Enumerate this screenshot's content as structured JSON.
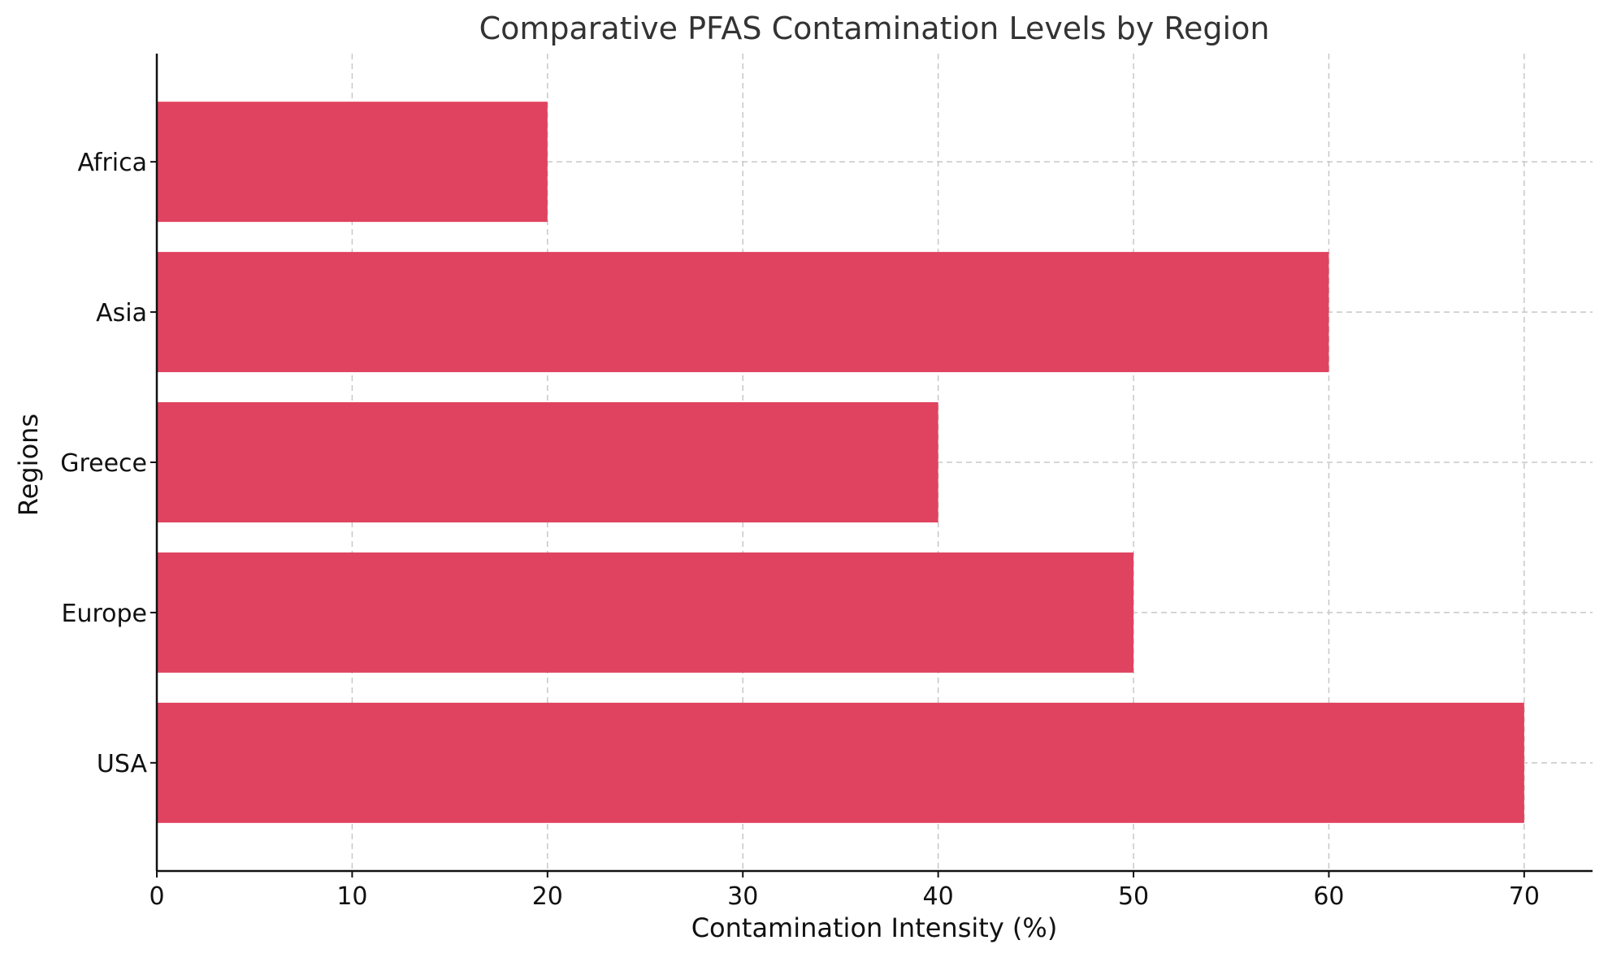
{
  "chart_data": {
    "type": "bar",
    "orientation": "horizontal",
    "title": "Comparative PFAS Contamination Levels by Region",
    "xlabel": "Contamination Intensity (%)",
    "ylabel": "Regions",
    "categories": [
      "USA",
      "Europe",
      "Greece",
      "Asia",
      "Africa"
    ],
    "values": [
      70,
      50,
      40,
      60,
      20
    ],
    "xlim": [
      0,
      73.5
    ],
    "xticks": [
      0,
      10,
      20,
      30,
      40,
      50,
      60,
      70
    ],
    "grid": true,
    "bar_color": "#e0435f"
  }
}
